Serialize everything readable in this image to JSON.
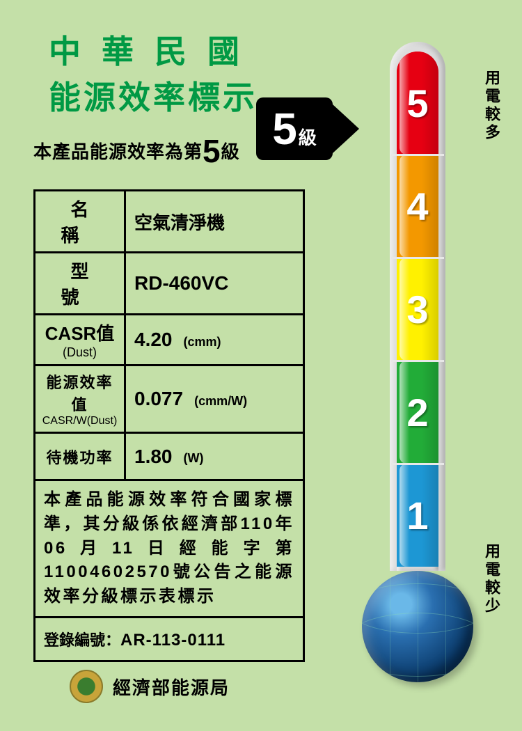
{
  "header": {
    "line1": "中華民國",
    "line2": "能源效率標示"
  },
  "subheader": {
    "prefix": "本產品能源效率為第",
    "grade": "5",
    "suffix": "級"
  },
  "badge": {
    "number": "5",
    "suffix": "級"
  },
  "table": {
    "rows": [
      {
        "label": "名稱",
        "label_sub": "",
        "value": "空氣清淨機",
        "unit": "",
        "label_style": "spread",
        "value_cn": true
      },
      {
        "label": "型號",
        "label_sub": "",
        "value": "RD-460VC",
        "unit": "",
        "label_style": "spread",
        "value_cn": false
      },
      {
        "label": "CASR值",
        "label_sub": "(Dust)",
        "value": "4.20",
        "unit": "(cmm)",
        "label_style": "",
        "value_cn": false
      },
      {
        "label": "能源效率值",
        "label_sub": "CASR/W(Dust)",
        "value": "0.077",
        "unit": "(cmm/W)",
        "label_style": "small",
        "value_cn": false
      },
      {
        "label": "待機功率",
        "label_sub": "",
        "value": "1.80",
        "unit": "(W)",
        "label_style": "small",
        "value_cn": false
      }
    ],
    "disclaimer": "本產品能源效率符合國家標準，其分級係依經濟部110年06月11日經能字第11004602570號公告之能源效率分級標示表標示",
    "reg_label": "登錄編號：",
    "reg_number": "AR-113-0111"
  },
  "issuer": "經濟部能源局",
  "thermometer": {
    "segments": [
      {
        "label": "5",
        "color": "#e60012"
      },
      {
        "label": "4",
        "color": "#f39800"
      },
      {
        "label": "3",
        "color": "#fff100"
      },
      {
        "label": "2",
        "color": "#22ac38"
      },
      {
        "label": "1",
        "color": "#1d97d4"
      }
    ],
    "top_label": "用電較多",
    "bottom_label": "用電較少",
    "current_grade": 5,
    "tube_outer_color": "#dcdcdc",
    "tick_color": "#e8e8e8"
  },
  "style": {
    "background": "#c4e0a8",
    "header_color": "#009944",
    "border_color": "#000000"
  }
}
